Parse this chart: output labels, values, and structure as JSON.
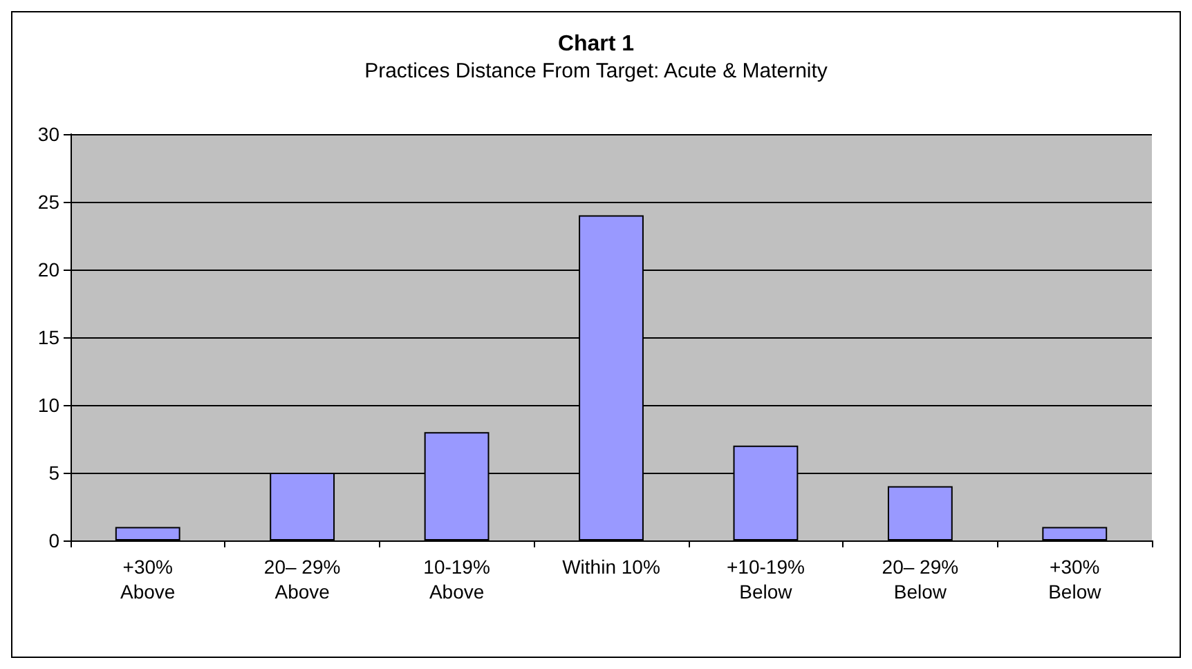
{
  "chart_data": {
    "type": "bar",
    "title": "Chart 1",
    "subtitle": "Practices Distance From Target: Acute & Maternity",
    "categories": [
      "+30%\nAbove",
      "20– 29%\nAbove",
      "10-19%\nAbove",
      "Within 10%",
      "+10-19%\nBelow",
      "20– 29%\nBelow",
      "+30%\nBelow"
    ],
    "values": [
      1,
      5,
      8,
      24,
      7,
      4,
      1
    ],
    "color": "#9999ff",
    "ylim": [
      0,
      30
    ],
    "yticks": [
      0,
      5,
      10,
      15,
      20,
      25,
      30
    ],
    "grid": "y"
  }
}
